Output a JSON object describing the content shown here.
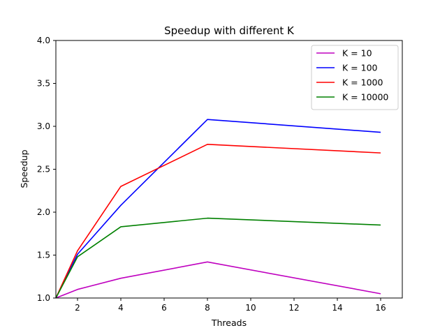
{
  "chart_data": {
    "type": "line",
    "title": "Speedup with different K",
    "xlabel": "Threads",
    "ylabel": "Speedup",
    "xlim": [
      1,
      17
    ],
    "ylim": [
      1.0,
      4.0
    ],
    "xticks": [
      2,
      4,
      6,
      8,
      10,
      12,
      14,
      16
    ],
    "xtick_labels": [
      "2",
      "4",
      "6",
      "8",
      "10",
      "12",
      "14",
      "16"
    ],
    "yticks": [
      1.0,
      1.5,
      2.0,
      2.5,
      3.0,
      3.5,
      4.0
    ],
    "ytick_labels": [
      "1.0",
      "1.5",
      "2.0",
      "2.5",
      "3.0",
      "3.5",
      "4.0"
    ],
    "grid": false,
    "legend_position": "top-right",
    "x": [
      1,
      2,
      4,
      8,
      16
    ],
    "series": [
      {
        "name": "K = 10",
        "color": "#bf00bf",
        "values": [
          1.0,
          1.1,
          1.23,
          1.42,
          1.05
        ]
      },
      {
        "name": "K = 100",
        "color": "#0000ff",
        "values": [
          1.0,
          1.51,
          2.08,
          3.08,
          2.93
        ]
      },
      {
        "name": "K = 1000",
        "color": "#ff0000",
        "values": [
          1.0,
          1.55,
          2.3,
          2.79,
          2.69
        ]
      },
      {
        "name": "K = 10000",
        "color": "#008000",
        "values": [
          1.0,
          1.48,
          1.83,
          1.93,
          1.85
        ]
      }
    ]
  }
}
